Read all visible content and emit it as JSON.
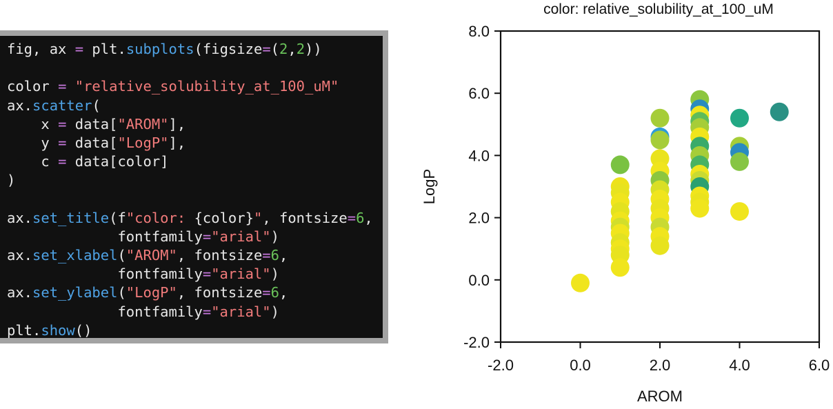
{
  "code_panel": {
    "lines": [
      [
        {
          "t": "txt",
          "s": "fig, ax "
        },
        {
          "t": "kw",
          "s": "="
        },
        {
          "t": "txt",
          "s": " plt."
        },
        {
          "t": "fn",
          "s": "subplots"
        },
        {
          "t": "txt",
          "s": "(figsize"
        },
        {
          "t": "kw",
          "s": "="
        },
        {
          "t": "txt",
          "s": "("
        },
        {
          "t": "num",
          "s": "2"
        },
        {
          "t": "txt",
          "s": ","
        },
        {
          "t": "num",
          "s": "2"
        },
        {
          "t": "txt",
          "s": "))"
        }
      ],
      [],
      [
        {
          "t": "txt",
          "s": "color "
        },
        {
          "t": "kw",
          "s": "="
        },
        {
          "t": "txt",
          "s": " "
        },
        {
          "t": "str",
          "s": "\"relative_solubility_at_100_uM\""
        }
      ],
      [
        {
          "t": "txt",
          "s": "ax."
        },
        {
          "t": "fn",
          "s": "scatter"
        },
        {
          "t": "txt",
          "s": "("
        }
      ],
      [
        {
          "t": "txt",
          "s": "    x "
        },
        {
          "t": "kw",
          "s": "="
        },
        {
          "t": "txt",
          "s": " data["
        },
        {
          "t": "str",
          "s": "\"AROM\""
        },
        {
          "t": "txt",
          "s": "],"
        }
      ],
      [
        {
          "t": "txt",
          "s": "    y "
        },
        {
          "t": "kw",
          "s": "="
        },
        {
          "t": "txt",
          "s": " data["
        },
        {
          "t": "str",
          "s": "\"LogP\""
        },
        {
          "t": "txt",
          "s": "],"
        }
      ],
      [
        {
          "t": "txt",
          "s": "    c "
        },
        {
          "t": "kw",
          "s": "="
        },
        {
          "t": "txt",
          "s": " data[color]"
        }
      ],
      [
        {
          "t": "txt",
          "s": ")"
        }
      ],
      [],
      [
        {
          "t": "txt",
          "s": "ax."
        },
        {
          "t": "fn",
          "s": "set_title"
        },
        {
          "t": "txt",
          "s": "(f"
        },
        {
          "t": "str",
          "s": "\"color: "
        },
        {
          "t": "txt",
          "s": "{color}"
        },
        {
          "t": "str",
          "s": "\""
        },
        {
          "t": "txt",
          "s": ", fontsize"
        },
        {
          "t": "kw",
          "s": "="
        },
        {
          "t": "num",
          "s": "6"
        },
        {
          "t": "txt",
          "s": ","
        }
      ],
      [
        {
          "t": "txt",
          "s": "             fontfamily"
        },
        {
          "t": "kw",
          "s": "="
        },
        {
          "t": "str",
          "s": "\"arial\""
        },
        {
          "t": "txt",
          "s": ")"
        }
      ],
      [
        {
          "t": "txt",
          "s": "ax."
        },
        {
          "t": "fn",
          "s": "set_xlabel"
        },
        {
          "t": "txt",
          "s": "("
        },
        {
          "t": "str",
          "s": "\"AROM\""
        },
        {
          "t": "txt",
          "s": ", fontsize"
        },
        {
          "t": "kw",
          "s": "="
        },
        {
          "t": "num",
          "s": "6"
        },
        {
          "t": "txt",
          "s": ","
        }
      ],
      [
        {
          "t": "txt",
          "s": "             fontfamily"
        },
        {
          "t": "kw",
          "s": "="
        },
        {
          "t": "str",
          "s": "\"arial\""
        },
        {
          "t": "txt",
          "s": ")"
        }
      ],
      [
        {
          "t": "txt",
          "s": "ax."
        },
        {
          "t": "fn",
          "s": "set_ylabel"
        },
        {
          "t": "txt",
          "s": "("
        },
        {
          "t": "str",
          "s": "\"LogP\""
        },
        {
          "t": "txt",
          "s": ", fontsize"
        },
        {
          "t": "kw",
          "s": "="
        },
        {
          "t": "num",
          "s": "6"
        },
        {
          "t": "txt",
          "s": ","
        }
      ],
      [
        {
          "t": "txt",
          "s": "             fontfamily"
        },
        {
          "t": "kw",
          "s": "="
        },
        {
          "t": "str",
          "s": "\"arial\""
        },
        {
          "t": "txt",
          "s": ")"
        }
      ],
      [
        {
          "t": "txt",
          "s": "plt."
        },
        {
          "t": "fn",
          "s": "show"
        },
        {
          "t": "txt",
          "s": "()"
        }
      ]
    ]
  },
  "chart_data": {
    "type": "scatter",
    "title": "color: relative_solubility_at_100_uM",
    "xlabel": "AROM",
    "ylabel": "LogP",
    "xlim": [
      -2.0,
      6.0
    ],
    "ylim": [
      -2.0,
      8.0
    ],
    "xticks": [
      -2.0,
      0.0,
      2.0,
      4.0,
      6.0
    ],
    "yticks": [
      -2.0,
      0.0,
      2.0,
      4.0,
      6.0,
      8.0
    ],
    "xtick_labels": [
      "-2.0",
      "0.0",
      "2.0",
      "4.0",
      "6.0"
    ],
    "ytick_labels": [
      "-2.0",
      "0.0",
      "2.0",
      "4.0",
      "6.0",
      "8.0"
    ],
    "grid": false,
    "legend": "none",
    "colormap": "viridis",
    "points": [
      {
        "x": 0,
        "y": -0.1,
        "color": "#f0e51d"
      },
      {
        "x": 1,
        "y": 3.7,
        "color": "#7ac242"
      },
      {
        "x": 1,
        "y": 3.0,
        "color": "#ede21c"
      },
      {
        "x": 1,
        "y": 2.8,
        "color": "#e8e31f"
      },
      {
        "x": 1,
        "y": 2.5,
        "color": "#f0e51d"
      },
      {
        "x": 1,
        "y": 2.2,
        "color": "#e3e21f"
      },
      {
        "x": 1,
        "y": 1.9,
        "color": "#f0e51d"
      },
      {
        "x": 1,
        "y": 1.7,
        "color": "#d2de2b"
      },
      {
        "x": 1,
        "y": 1.5,
        "color": "#f0e51d"
      },
      {
        "x": 1,
        "y": 1.2,
        "color": "#e2e222"
      },
      {
        "x": 1,
        "y": 1.0,
        "color": "#f0e51d"
      },
      {
        "x": 1,
        "y": 0.8,
        "color": "#e8e31f"
      },
      {
        "x": 1,
        "y": 0.4,
        "color": "#f0e51d"
      },
      {
        "x": 2,
        "y": 5.2,
        "color": "#a6cd38"
      },
      {
        "x": 2,
        "y": 4.6,
        "color": "#2e9bd8"
      },
      {
        "x": 2,
        "y": 4.5,
        "color": "#a6cd38"
      },
      {
        "x": 2,
        "y": 3.9,
        "color": "#eae31e"
      },
      {
        "x": 2,
        "y": 3.5,
        "color": "#f0e51d"
      },
      {
        "x": 2,
        "y": 3.2,
        "color": "#8cc63f"
      },
      {
        "x": 2,
        "y": 2.9,
        "color": "#d9df25"
      },
      {
        "x": 2,
        "y": 2.6,
        "color": "#f0e51d"
      },
      {
        "x": 2,
        "y": 2.3,
        "color": "#eae31e"
      },
      {
        "x": 2,
        "y": 2.0,
        "color": "#f0e51d"
      },
      {
        "x": 2,
        "y": 1.7,
        "color": "#c9da33"
      },
      {
        "x": 2,
        "y": 1.4,
        "color": "#f0e51d"
      },
      {
        "x": 2,
        "y": 1.1,
        "color": "#e8e31f"
      },
      {
        "x": 3,
        "y": 5.8,
        "color": "#8cc63f"
      },
      {
        "x": 3,
        "y": 5.5,
        "color": "#2a8bbf"
      },
      {
        "x": 3,
        "y": 5.3,
        "color": "#f0e51d"
      },
      {
        "x": 3,
        "y": 5.1,
        "color": "#5fbc5a"
      },
      {
        "x": 3,
        "y": 4.9,
        "color": "#a6cd38"
      },
      {
        "x": 3,
        "y": 4.6,
        "color": "#f0e51d"
      },
      {
        "x": 3,
        "y": 4.3,
        "color": "#3aaa6a"
      },
      {
        "x": 3,
        "y": 4.0,
        "color": "#a6cd38"
      },
      {
        "x": 3,
        "y": 3.7,
        "color": "#48b262"
      },
      {
        "x": 3,
        "y": 3.4,
        "color": "#f0e51d"
      },
      {
        "x": 3,
        "y": 3.2,
        "color": "#c9da33"
      },
      {
        "x": 3,
        "y": 3.0,
        "color": "#2aa070"
      },
      {
        "x": 3,
        "y": 2.7,
        "color": "#f0e51d"
      },
      {
        "x": 3,
        "y": 2.5,
        "color": "#eae31e"
      },
      {
        "x": 3,
        "y": 2.3,
        "color": "#f0e51d"
      },
      {
        "x": 4,
        "y": 5.2,
        "color": "#22a884"
      },
      {
        "x": 4,
        "y": 4.3,
        "color": "#a6cd38"
      },
      {
        "x": 4,
        "y": 4.1,
        "color": "#2a8bbf"
      },
      {
        "x": 4,
        "y": 3.8,
        "color": "#86c544"
      },
      {
        "x": 4,
        "y": 2.2,
        "color": "#f0e51d"
      },
      {
        "x": 5,
        "y": 5.4,
        "color": "#2a9184"
      }
    ]
  }
}
